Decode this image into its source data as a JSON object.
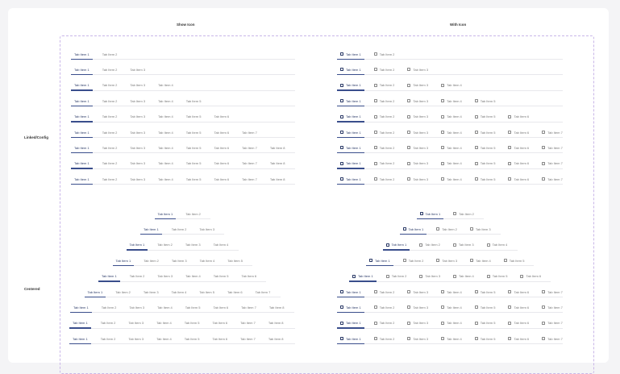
{
  "columns": [
    "Show Icon",
    "With Icon"
  ],
  "row_groups": [
    "Linked/Config",
    "Centered"
  ],
  "tab_sets": [
    [
      "Tab Item 1",
      "Tab Item 2"
    ],
    [
      "Tab Item 1",
      "Tab Item 2",
      "Tab Item 3"
    ],
    [
      "Tab Item 1",
      "Tab Item 2",
      "Tab Item 3",
      "Tab Item 4"
    ],
    [
      "Tab Item 1",
      "Tab Item 2",
      "Tab Item 3",
      "Tab Item 4",
      "Tab Item 5"
    ],
    [
      "Tab Item 1",
      "Tab Item 2",
      "Tab Item 3",
      "Tab Item 4",
      "Tab Item 5",
      "Tab Item 6"
    ],
    [
      "Tab Item 1",
      "Tab Item 2",
      "Tab Item 3",
      "Tab Item 4",
      "Tab Item 5",
      "Tab Item 6",
      "Tab Item 7"
    ],
    [
      "Tab Item 1",
      "Tab Item 2",
      "Tab Item 3",
      "Tab Item 4",
      "Tab Item 5",
      "Tab Item 6",
      "Tab Item 7",
      "Tab Item 8"
    ],
    [
      "Tab Item 1",
      "Tab Item 2",
      "Tab Item 3",
      "Tab Item 4",
      "Tab Item 5",
      "Tab Item 6",
      "Tab Item 7",
      "Tab Item 8",
      "Tab Item 9"
    ],
    [
      "Tab Item 1",
      "Tab Item 2",
      "Tab Item 3",
      "Tab Item 4",
      "Tab Item 5",
      "Tab Item 6",
      "Tab Item 7",
      "Tab Item 8",
      "Tab Item 9",
      "Tab Item 10"
    ]
  ],
  "colors": {
    "active_text": "#2b3a67",
    "active_indicator": "#3a4e8c",
    "inactive_text": "#777777",
    "frame_border": "#c9b6e8"
  }
}
